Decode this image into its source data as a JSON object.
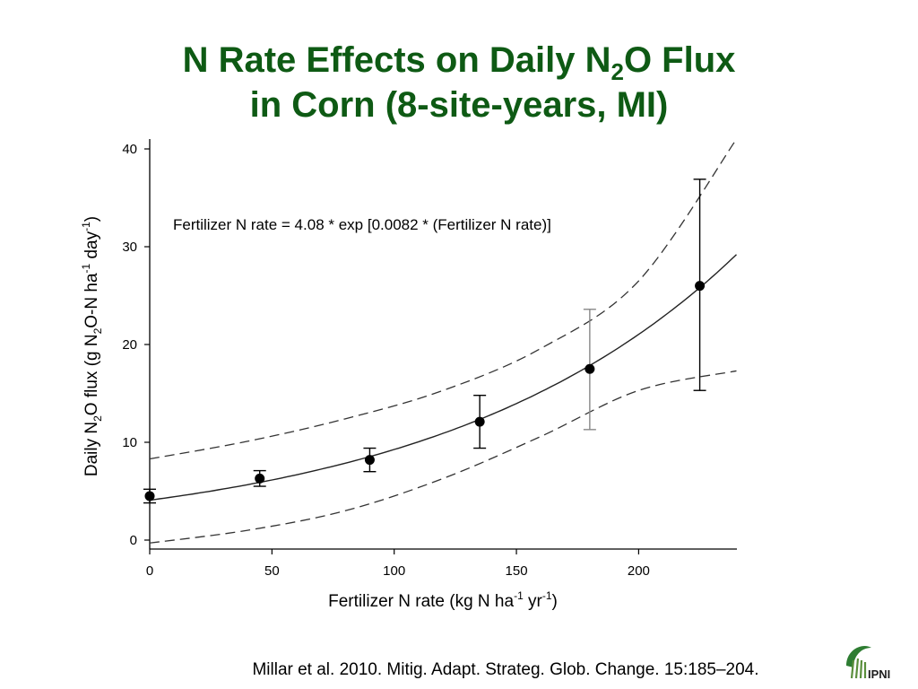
{
  "slide": {
    "title_line1_a": "N Rate Effects on Daily N",
    "title_line1_sub": "2",
    "title_line1_b": "O Flux",
    "title_line2": "in Corn  (8-site-years, MI)",
    "citation": "Millar et al. 2010. Mitig. Adapt. Strateg. Glob. Change. 15:185–204.",
    "logo_text": "IPNI"
  },
  "chart_data": {
    "type": "scatter",
    "equation": "Fertilizer N rate = 4.08 * exp [0.0082 * (Fertilizer N rate)]",
    "xlabel": {
      "a": "Fertilizer N rate (kg N ha",
      "sup1": "-1",
      "b": " yr",
      "sup2": "-1",
      "c": ")"
    },
    "ylabel": {
      "a": "Daily N",
      "sub": "2",
      "b": "O flux (g N",
      "sub2": "2",
      "c": "O-N ha",
      "sup1": "-1",
      "d": " day",
      "sup2": "-1",
      "e": ")"
    },
    "xlim": [
      0,
      240
    ],
    "ylim": [
      -1,
      41
    ],
    "xticks": [
      0,
      50,
      100,
      150,
      200
    ],
    "yticks": [
      0,
      10,
      20,
      30,
      40
    ],
    "points": [
      {
        "x": 0,
        "y": 4.5,
        "lo": 3.8,
        "hi": 5.2
      },
      {
        "x": 45,
        "y": 6.3,
        "lo": 5.5,
        "hi": 7.1
      },
      {
        "x": 90,
        "y": 8.2,
        "lo": 7.0,
        "hi": 9.4
      },
      {
        "x": 135,
        "y": 12.1,
        "lo": 9.4,
        "hi": 14.8
      },
      {
        "x": 180,
        "y": 17.5,
        "lo": 11.3,
        "hi": 23.6
      },
      {
        "x": 225,
        "y": 26.0,
        "lo": 15.3,
        "hi": 36.9
      }
    ],
    "fit": {
      "a": 4.08,
      "b": 0.0082
    },
    "upper_band": [
      [
        0,
        8.3
      ],
      [
        40,
        10.1
      ],
      [
        80,
        12.4
      ],
      [
        120,
        15.3
      ],
      [
        160,
        19.6
      ],
      [
        200,
        26.5
      ],
      [
        240,
        41.0
      ]
    ],
    "lower_band": [
      [
        0,
        -0.3
      ],
      [
        40,
        1.0
      ],
      [
        80,
        3.0
      ],
      [
        120,
        6.3
      ],
      [
        160,
        10.6
      ],
      [
        200,
        15.3
      ],
      [
        240,
        17.3
      ]
    ]
  }
}
